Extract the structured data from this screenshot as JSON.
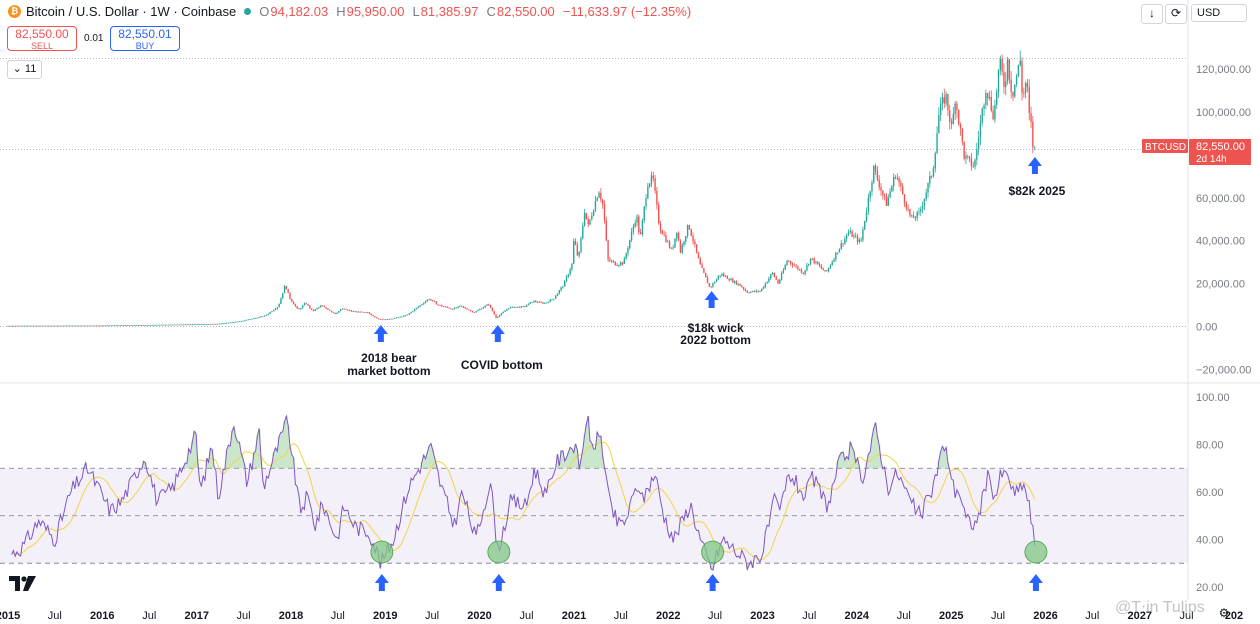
{
  "header": {
    "title": "Bitcoin / U.S. Dollar · 1W · Coinbase",
    "ohlc": {
      "o_label": "O",
      "o": "94,182.03",
      "h_label": "H",
      "h": "95,950.00",
      "l_label": "L",
      "l": "81,385.97",
      "c_label": "C",
      "c": "82,550.00",
      "change": "−11,633.97 (−12.35%)"
    },
    "sell": {
      "price": "82,550.00",
      "label": "SELL"
    },
    "buy": {
      "price": "82,550.01",
      "label": "BUY"
    },
    "spread": "0.01",
    "collapse_label": "11",
    "currency": "USD",
    "icons": {
      "download": "arrow-down-icon",
      "refresh": "refresh-icon",
      "settings": "gear-icon",
      "coin": "bitcoin-icon"
    }
  },
  "colors": {
    "up": "#26a69a",
    "down": "#ef5350",
    "rsi_line": "#7e57c2",
    "rsi_ma": "#f2d44a",
    "rsi_band": "#7e57c2",
    "arrow": "#2962ff",
    "circle": "#81c784",
    "last_price_bg": "#ef5350"
  },
  "watermark": "@T⋅in Tulips",
  "chart_data": [
    {
      "type": "candlestick",
      "title": "",
      "series_name": "BTCUSD",
      "last_price": {
        "symbol": "BTCUSD",
        "price": "82,550.00",
        "countdown": "2d 14h",
        "value": 82550
      },
      "ylim": [
        -25000,
        128000
      ],
      "y_ticks": [
        {
          "value": 120000,
          "label": "120,000.00"
        },
        {
          "value": 100000,
          "label": "100,000.00"
        },
        {
          "value": 60000,
          "label": "60,000.00"
        },
        {
          "value": 40000,
          "label": "40,000.00"
        },
        {
          "value": 20000,
          "label": "20,000.00"
        },
        {
          "value": 0,
          "label": "0.00"
        },
        {
          "value": -20000,
          "label": "−20,000.00"
        }
      ],
      "ath_line": 125000,
      "price_path": [
        [
          "2015-01-01",
          300
        ],
        [
          "2016-01-01",
          430
        ],
        [
          "2016-07-01",
          670
        ],
        [
          "2017-01-01",
          1000
        ],
        [
          "2017-04-01",
          1200
        ],
        [
          "2017-07-01",
          2500
        ],
        [
          "2017-10-01",
          5000
        ],
        [
          "2017-11-20",
          9500
        ],
        [
          "2017-12-17",
          19500
        ],
        [
          "2018-01-01",
          13500
        ],
        [
          "2018-02-05",
          7500
        ],
        [
          "2018-03-05",
          11000
        ],
        [
          "2018-04-01",
          7000
        ],
        [
          "2018-05-05",
          9700
        ],
        [
          "2018-06-28",
          5900
        ],
        [
          "2018-07-25",
          8300
        ],
        [
          "2018-09-01",
          7000
        ],
        [
          "2018-11-01",
          6400
        ],
        [
          "2018-12-15",
          3200
        ],
        [
          "2019-02-01",
          3500
        ],
        [
          "2019-04-01",
          5200
        ],
        [
          "2019-06-26",
          12900
        ],
        [
          "2019-08-01",
          10000
        ],
        [
          "2019-09-25",
          8100
        ],
        [
          "2019-10-26",
          9500
        ],
        [
          "2019-12-18",
          6500
        ],
        [
          "2020-02-12",
          10400
        ],
        [
          "2020-03-12",
          4000
        ],
        [
          "2020-05-01",
          8800
        ],
        [
          "2020-06-30",
          9200
        ],
        [
          "2020-08-01",
          11800
        ],
        [
          "2020-09-15",
          10700
        ],
        [
          "2020-10-21",
          13000
        ],
        [
          "2020-11-30",
          19700
        ],
        [
          "2020-12-31",
          29000
        ],
        [
          "2021-01-08",
          41000
        ],
        [
          "2021-01-25",
          31000
        ],
        [
          "2021-02-21",
          57000
        ],
        [
          "2021-02-28",
          45000
        ],
        [
          "2021-04-14",
          64000
        ],
        [
          "2021-05-01",
          56000
        ],
        [
          "2021-05-19",
          31000
        ],
        [
          "2021-06-22",
          29000
        ],
        [
          "2021-07-20",
          30000
        ],
        [
          "2021-09-07",
          52000
        ],
        [
          "2021-09-21",
          40500
        ],
        [
          "2021-10-20",
          67000
        ],
        [
          "2021-11-10",
          69000
        ],
        [
          "2021-12-04",
          47000
        ],
        [
          "2022-01-22",
          35000
        ],
        [
          "2022-02-10",
          45000
        ],
        [
          "2022-02-24",
          35000
        ],
        [
          "2022-03-28",
          47500
        ],
        [
          "2022-05-10",
          29000
        ],
        [
          "2022-06-18",
          18000
        ],
        [
          "2022-07-30",
          24500
        ],
        [
          "2022-09-10",
          21500
        ],
        [
          "2022-10-15",
          19000
        ],
        [
          "2022-11-09",
          16000
        ],
        [
          "2022-12-31",
          16500
        ],
        [
          "2023-02-15",
          25000
        ],
        [
          "2023-03-10",
          20000
        ],
        [
          "2023-04-14",
          31000
        ],
        [
          "2023-06-15",
          25000
        ],
        [
          "2023-07-14",
          31800
        ],
        [
          "2023-09-11",
          25000
        ],
        [
          "2023-10-24",
          35000
        ],
        [
          "2023-12-08",
          44000
        ],
        [
          "2024-01-23",
          39000
        ],
        [
          "2024-03-14",
          73800
        ],
        [
          "2024-05-01",
          57000
        ],
        [
          "2024-06-07",
          71500
        ],
        [
          "2024-08-05",
          50000
        ],
        [
          "2024-09-06",
          52500
        ],
        [
          "2024-10-29",
          73000
        ],
        [
          "2024-11-22",
          99500
        ],
        [
          "2024-12-17",
          108000
        ],
        [
          "2025-01-13",
          90000
        ],
        [
          "2025-01-20",
          109500
        ],
        [
          "2025-02-28",
          79000
        ],
        [
          "2025-04-07",
          74500
        ],
        [
          "2025-05-22",
          112000
        ],
        [
          "2025-06-22",
          98000
        ],
        [
          "2025-07-14",
          123000
        ],
        [
          "2025-08-02",
          112000
        ],
        [
          "2025-08-14",
          124000
        ],
        [
          "2025-09-01",
          108000
        ],
        [
          "2025-10-06",
          126000
        ],
        [
          "2025-10-10",
          105000
        ],
        [
          "2025-10-27",
          116000
        ],
        [
          "2025-11-04",
          99000
        ],
        [
          "2025-11-16",
          92000
        ],
        [
          "2025-11-21",
          82550
        ]
      ],
      "annotations": [
        {
          "date": "2018-12-15",
          "line1": "2018 bear",
          "line2": "market bottom"
        },
        {
          "date": "2020-03-12",
          "line1": "COVID bottom",
          "line2": ""
        },
        {
          "date": "2022-06-18",
          "line1": "$18k wick",
          "line2": "2022 bottom"
        },
        {
          "date": "2025-11-21",
          "line1": "$82k 2025",
          "line2": ""
        }
      ]
    },
    {
      "type": "line",
      "title": "",
      "ylim": [
        17,
        103
      ],
      "y_ticks": [
        {
          "value": 100,
          "label": "100.00"
        },
        {
          "value": 80,
          "label": "80.00"
        },
        {
          "value": 60,
          "label": "60.00"
        },
        {
          "value": 40,
          "label": "40.00"
        },
        {
          "value": 20,
          "label": "20.00"
        }
      ],
      "levels": [
        70,
        50,
        30
      ],
      "rsi_path": [
        [
          "2015-01-15",
          34
        ],
        [
          "2015-03-01",
          37
        ],
        [
          "2015-05-01",
          48
        ],
        [
          "2015-07-01",
          40
        ],
        [
          "2015-09-01",
          60
        ],
        [
          "2015-11-05",
          70
        ],
        [
          "2015-12-15",
          62
        ],
        [
          "2016-02-01",
          52
        ],
        [
          "2016-03-15",
          56
        ],
        [
          "2016-06-15",
          75
        ],
        [
          "2016-08-01",
          56
        ],
        [
          "2016-10-01",
          62
        ],
        [
          "2016-12-28",
          84
        ],
        [
          "2017-01-15",
          60
        ],
        [
          "2017-03-01",
          80
        ],
        [
          "2017-03-25",
          58
        ],
        [
          "2017-05-25",
          90
        ],
        [
          "2017-07-15",
          64
        ],
        [
          "2017-09-01",
          86
        ],
        [
          "2017-09-15",
          62
        ],
        [
          "2017-12-17",
          90
        ],
        [
          "2018-02-05",
          52
        ],
        [
          "2018-03-05",
          58
        ],
        [
          "2018-04-05",
          46
        ],
        [
          "2018-05-05",
          55
        ],
        [
          "2018-06-28",
          40
        ],
        [
          "2018-07-25",
          54
        ],
        [
          "2018-09-10",
          45
        ],
        [
          "2018-11-01",
          43
        ],
        [
          "2018-12-15",
          30
        ],
        [
          "2019-02-01",
          40
        ],
        [
          "2019-04-01",
          62
        ],
        [
          "2019-06-26",
          79
        ],
        [
          "2019-08-01",
          64
        ],
        [
          "2019-09-25",
          46
        ],
        [
          "2019-10-26",
          60
        ],
        [
          "2019-12-18",
          40
        ],
        [
          "2020-02-12",
          65
        ],
        [
          "2020-03-12",
          35
        ],
        [
          "2020-05-01",
          56
        ],
        [
          "2020-06-30",
          54
        ],
        [
          "2020-08-01",
          70
        ],
        [
          "2020-09-15",
          58
        ],
        [
          "2020-10-21",
          72
        ],
        [
          "2020-12-31",
          80
        ],
        [
          "2021-01-25",
          70
        ],
        [
          "2021-02-21",
          94
        ],
        [
          "2021-03-05",
          78
        ],
        [
          "2021-04-14",
          84
        ],
        [
          "2021-05-19",
          55
        ],
        [
          "2021-06-22",
          46
        ],
        [
          "2021-07-20",
          48
        ],
        [
          "2021-09-07",
          64
        ],
        [
          "2021-09-21",
          56
        ],
        [
          "2021-11-10",
          68
        ],
        [
          "2021-12-15",
          50
        ],
        [
          "2022-01-22",
          40
        ],
        [
          "2022-03-28",
          55
        ],
        [
          "2022-05-10",
          38
        ],
        [
          "2022-06-18",
          27
        ],
        [
          "2022-07-30",
          40
        ],
        [
          "2022-09-10",
          36
        ],
        [
          "2022-11-09",
          30
        ],
        [
          "2022-12-31",
          34
        ],
        [
          "2023-02-15",
          56
        ],
        [
          "2023-03-10",
          52
        ],
        [
          "2023-04-14",
          68
        ],
        [
          "2023-06-15",
          58
        ],
        [
          "2023-07-14",
          66
        ],
        [
          "2023-09-11",
          54
        ],
        [
          "2023-10-24",
          72
        ],
        [
          "2023-12-08",
          78
        ],
        [
          "2024-01-23",
          66
        ],
        [
          "2024-03-14",
          87
        ],
        [
          "2024-05-01",
          62
        ],
        [
          "2024-06-07",
          68
        ],
        [
          "2024-08-05",
          54
        ],
        [
          "2024-09-06",
          50
        ],
        [
          "2024-10-29",
          64
        ],
        [
          "2024-11-22",
          78
        ],
        [
          "2024-12-17",
          76
        ],
        [
          "2025-01-13",
          60
        ],
        [
          "2025-01-28",
          62
        ],
        [
          "2025-02-28",
          48
        ],
        [
          "2025-04-07",
          46
        ],
        [
          "2025-05-22",
          66
        ],
        [
          "2025-06-22",
          58
        ],
        [
          "2025-07-14",
          68
        ],
        [
          "2025-08-14",
          66
        ],
        [
          "2025-09-01",
          58
        ],
        [
          "2025-10-06",
          64
        ],
        [
          "2025-10-27",
          56
        ],
        [
          "2025-11-10",
          46
        ],
        [
          "2025-11-21",
          35
        ]
      ],
      "bottom_markers": [
        "2018-12-15",
        "2020-03-12",
        "2022-06-18",
        "2025-11-21"
      ]
    }
  ],
  "x_axis": [
    {
      "date": "2015-01-01",
      "label": "2015"
    },
    {
      "date": "2015-07-01",
      "label": "Jul"
    },
    {
      "date": "2016-01-01",
      "label": "2016"
    },
    {
      "date": "2016-07-01",
      "label": "Jul"
    },
    {
      "date": "2017-01-01",
      "label": "2017"
    },
    {
      "date": "2017-07-01",
      "label": "Jul"
    },
    {
      "date": "2018-01-01",
      "label": "2018"
    },
    {
      "date": "2018-07-01",
      "label": "Jul"
    },
    {
      "date": "2019-01-01",
      "label": "2019"
    },
    {
      "date": "2019-07-01",
      "label": "Jul"
    },
    {
      "date": "2020-01-01",
      "label": "2020"
    },
    {
      "date": "2020-07-01",
      "label": "Jul"
    },
    {
      "date": "2021-01-01",
      "label": "2021"
    },
    {
      "date": "2021-07-01",
      "label": "Jul"
    },
    {
      "date": "2022-01-01",
      "label": "2022"
    },
    {
      "date": "2022-07-01",
      "label": "Jul"
    },
    {
      "date": "2023-01-01",
      "label": "2023"
    },
    {
      "date": "2023-07-01",
      "label": "Jul"
    },
    {
      "date": "2024-01-01",
      "label": "2024"
    },
    {
      "date": "2024-07-01",
      "label": "Jul"
    },
    {
      "date": "2025-01-01",
      "label": "2025"
    },
    {
      "date": "2025-07-01",
      "label": "Jul"
    },
    {
      "date": "2026-01-01",
      "label": "2026"
    },
    {
      "date": "2026-07-01",
      "label": "Jul"
    },
    {
      "date": "2027-01-01",
      "label": "2027"
    },
    {
      "date": "2027-07-01",
      "label": "Jul"
    },
    {
      "date": "2028-01-01",
      "label": "202"
    }
  ]
}
